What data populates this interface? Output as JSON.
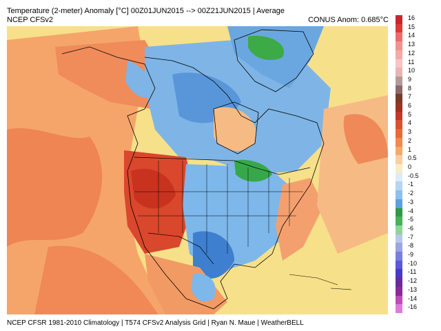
{
  "header": {
    "title": "Temperature (2-meter) Anomaly  [°C] 00Z01JUN2015 --> 00Z21JUN2015 | Average",
    "model": "NCEP  CFSv2",
    "conus_anom": "CONUS Anom: 0.685°C"
  },
  "footer": "NCEP CFSR 1981-2010 Climatology | T574 CFSv2 Analysis Grid | Ryan N. Maue | WeatherBELL",
  "map": {
    "region": "North America",
    "ocean_color": "#f7e08a",
    "border_color": "#000000",
    "anomaly_regions": [
      {
        "name": "pacific-warm",
        "color": "#f5a56a"
      },
      {
        "name": "pacific-warm-core",
        "color": "#ee7d4e"
      },
      {
        "name": "alaska-warm",
        "color": "#f08b5a"
      },
      {
        "name": "northwest-us-warm",
        "color": "#d9472d"
      },
      {
        "name": "northwest-us-hot-core",
        "color": "#c8321f"
      },
      {
        "name": "canada-cool",
        "color": "#7eb5e6"
      },
      {
        "name": "canada-cool-deep",
        "color": "#4f8ed6"
      },
      {
        "name": "greenland-cool",
        "color": "#6aa7e0"
      },
      {
        "name": "greenland-cold-core",
        "color": "#3caa46"
      },
      {
        "name": "great-lakes-cold",
        "color": "#37a84a"
      },
      {
        "name": "central-us-cool",
        "color": "#7eb7ea"
      },
      {
        "name": "texas-cool",
        "color": "#3e7fcf"
      },
      {
        "name": "east-coast-warm",
        "color": "#f4a06e"
      },
      {
        "name": "atlantic-warm",
        "color": "#f6bb84"
      },
      {
        "name": "mexico-warm",
        "color": "#f29a63"
      }
    ]
  },
  "colorbar": {
    "labels": [
      "16",
      "15",
      "14",
      "13",
      "12",
      "11",
      "10",
      "9",
      "8",
      "7",
      "6",
      "5",
      "4",
      "3",
      "2",
      "1",
      "0.5",
      "0",
      "-0.5",
      "-1",
      "-2",
      "-3",
      "-4",
      "-5",
      "-6",
      "-7",
      "-8",
      "-9",
      "-10",
      "-11",
      "-12",
      "-13",
      "-14",
      "-16"
    ],
    "colors": [
      "#c8262f",
      "#d93a3a",
      "#f06b6b",
      "#f49090",
      "#f5a9a9",
      "#f7c5c5",
      "#e8b5b5",
      "#b39a9a",
      "#8a6a6a",
      "#7a3a2a",
      "#a0301f",
      "#c0392b",
      "#d9512e",
      "#ea6a36",
      "#f28a4a",
      "#f6aa6a",
      "#f8cfa0",
      "#fbecc8",
      "#dcecf8",
      "#b5d6f2",
      "#8ec0ec",
      "#5ca0e0",
      "#2f9a44",
      "#44b45a",
      "#8fd49a",
      "#b8c8e8",
      "#9aa6e0",
      "#7a7ee0",
      "#5a58dc",
      "#4a38c8",
      "#6a2a9a",
      "#8a2a9a",
      "#c04ab8",
      "#e07ad8"
    ]
  }
}
